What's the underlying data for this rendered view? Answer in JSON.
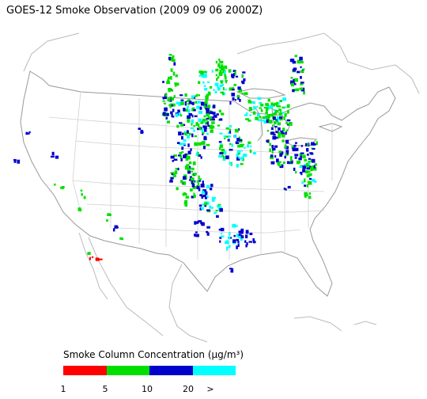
{
  "title": "GOES-12 Smoke Observation (2009 09 06  2000Z)",
  "legend": {
    "title": "Smoke Column Concentration (µg/m³)",
    "bins": [
      {
        "color": "#ff0000",
        "from": "1",
        "to": "5"
      },
      {
        "color": "#00e000",
        "from": "5",
        "to": "10"
      },
      {
        "color": "#0000cc",
        "from": "10",
        "to": "20"
      },
      {
        "color": "#00ffff",
        "from": "20",
        "to": ">"
      }
    ],
    "tick_labels": [
      "1",
      "5",
      "10",
      "20",
      ">"
    ]
  },
  "map": {
    "region": "Continental United States",
    "boundary_color": "#cccccc",
    "coast_color": "#999999"
  }
}
